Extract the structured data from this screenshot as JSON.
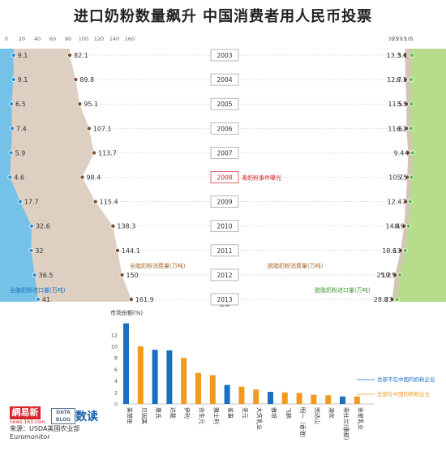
{
  "title": "进口奶粉数量飙升 中国消费者用人民币投票",
  "colors": {
    "left_blue": "#74c2e8",
    "whole_milk": "#ddd0c2",
    "skim_milk": "#d3c6b7",
    "right_green": "#b7dd8c",
    "dot_blue": "#2b8fd1",
    "dot_brown": "#7b5232",
    "dot_green": "#5fbc4c",
    "bar_foreign": "#1b6fc1",
    "bar_domestic": "#f29a1f",
    "highlight_red": "#d5252b"
  },
  "chart_data": [
    {
      "type": "area",
      "years": [
        "2003",
        "2004",
        "2005",
        "2006",
        "2007",
        "2008",
        "2009",
        "2010",
        "2011",
        "2012",
        "2013"
      ],
      "year_note": "估值",
      "event_label": "毒奶粉事件曝光",
      "series": [
        {
          "name": "全脂奶粉进口量(万吨)",
          "axis": "left_small",
          "values": [
            9.1,
            9.1,
            6.5,
            7.4,
            5.9,
            4.6,
            17.7,
            32.6,
            32,
            36.5,
            41
          ]
        },
        {
          "name": "全脂奶粉消费量(万吨)",
          "axis": "left_large",
          "values": [
            82.1,
            89.8,
            95.1,
            107.1,
            113.7,
            98.4,
            115.4,
            138.3,
            144.1,
            150,
            161.9
          ]
        },
        {
          "name": "脱脂奶粉消费量(万吨)",
          "axis": "right_large",
          "values": [
            13.3,
            12.7,
            11.5,
            11.6,
            9.4,
            10.7,
            12.4,
            14.4,
            18.6,
            25.2,
            28.8
          ]
        },
        {
          "name": "脱脂奶粉进口量(万吨)",
          "axis": "right_small",
          "values": [
            5.1,
            6.1,
            5.5,
            6.2,
            4,
            5.5,
            7,
            8.9,
            13,
            19.5,
            23
          ]
        }
      ],
      "left_ticks": [
        "0",
        "20",
        "40",
        "60",
        "80",
        "100",
        "120",
        "140",
        "160"
      ],
      "right_ticks": [
        "30",
        "25",
        "20",
        "15",
        "10",
        "5"
      ]
    },
    {
      "type": "bar",
      "ylabel": "市场份额(%)",
      "yticks": [
        "0",
        "2",
        "4",
        "6",
        "8",
        "10",
        "12"
      ],
      "ylim": [
        0,
        14
      ],
      "categories": [
        "美赞臣",
        "贝因美",
        "惠氏",
        "达能",
        "伊利",
        "合生元",
        "雅士利",
        "雀巢",
        "圣元",
        "大庆乳业",
        "雅培",
        "飞鹤",
        "明一（香港）",
        "完达山",
        "澳优",
        "菲仕兰(康都)",
        "金星乳业"
      ],
      "values": [
        14,
        10,
        9.4,
        9.3,
        8,
        5.4,
        5,
        3.3,
        3,
        2.5,
        2.1,
        2,
        1.9,
        1.6,
        1.5,
        1.3,
        1.3
      ],
      "groups": [
        "foreign",
        "domestic",
        "foreign",
        "foreign",
        "domestic",
        "domestic",
        "domestic",
        "foreign",
        "domestic",
        "domestic",
        "foreign",
        "domestic",
        "domestic",
        "domestic",
        "domestic",
        "foreign",
        "domestic"
      ],
      "legend": {
        "foreign": "总部不在中国的奶粉企业",
        "domestic": "总部在中国的奶粉企业"
      }
    }
  ],
  "footer": {
    "logo_163": "網易新聞",
    "logo_163_sub": "news.163.com",
    "logo_datablog": "DATA BLOG",
    "logo_shudu": "数读",
    "source_line1": "来源：USDA美国农业部",
    "source_line2": "Euromonitor"
  }
}
